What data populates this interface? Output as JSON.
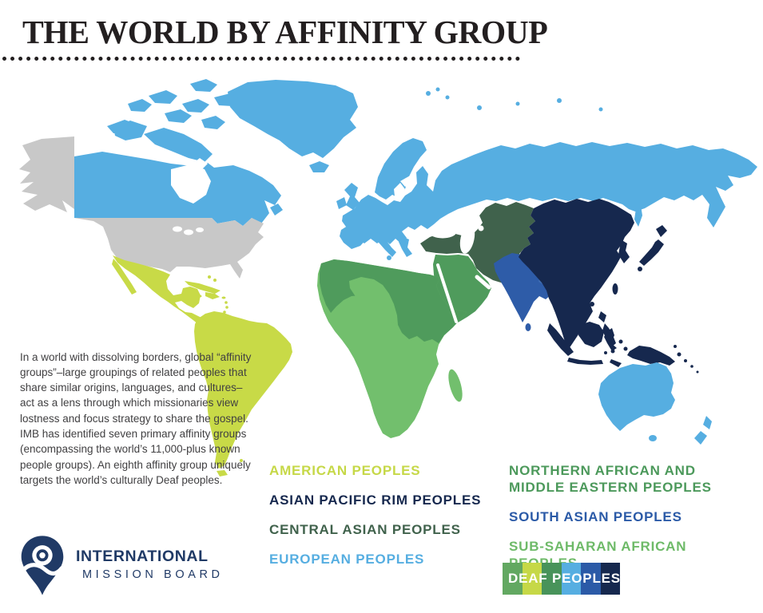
{
  "page": {
    "title": "THE WORLD BY AFFINITY GROUP"
  },
  "intro": {
    "text": "In a world with dissolving borders, global “affinity groups”–large groupings of related peoples that share similar origins, languages, and cultures–act as a lens through which missionaries view lostness and focus strategy to share the gospel. IMB has identified seven primary affinity groups (encompassing the world’s 11,000-plus known people groups). An eighth affinity group uniquely targets the world’s culturally Deaf peoples."
  },
  "logo": {
    "line1": "INTERNATIONAL",
    "line2": "MISSION BOARD",
    "color": "#203a66"
  },
  "legend": {
    "left_column": [
      {
        "id": "american",
        "label": "AMERICAN PEOPLES",
        "color": "#c6d847"
      },
      {
        "id": "asian-pacific-rim",
        "label": "ASIAN PACIFIC RIM PEOPLES",
        "color": "#16284e"
      },
      {
        "id": "central-asian",
        "label": "CENTRAL ASIAN PEOPLES",
        "color": "#40624c"
      },
      {
        "id": "european",
        "label": "EUROPEAN PEOPLES",
        "color": "#56aee1"
      }
    ],
    "right_column": [
      {
        "id": "northern-african-middle-eastern",
        "label": "NORTHERN AFRICAN AND MIDDLE EASTERN PEOPLES",
        "color": "#4c995b"
      },
      {
        "id": "south-asian",
        "label": "SOUTH ASIAN PEOPLES",
        "color": "#2b5aa7"
      },
      {
        "id": "sub-saharan-african",
        "label": "SUB-SAHARAN AFRICAN PEOPLES",
        "color": "#6eba68"
      }
    ],
    "deaf": {
      "label": "DEAF PEOPLES",
      "text_color": "#ffffff",
      "stripe_colors": [
        "#62a861",
        "#c6d847",
        "#48935a",
        "#56aee1",
        "#2b5aa7",
        "#16284e"
      ]
    }
  },
  "map": {
    "ocean_color": "#ffffff",
    "region_colors": {
      "american": "#c8da47",
      "asian_pacific_rim": "#16284e",
      "central_asian": "#40624c",
      "european": "#56aee1",
      "northern_african_middle_eastern": "#4f9b5c",
      "south_asian": "#2e5ca8",
      "south_asian_light": "#3f6db3",
      "sub_saharan_african": "#72bf6d",
      "unlabeled_gray": "#c8c8c8"
    }
  }
}
